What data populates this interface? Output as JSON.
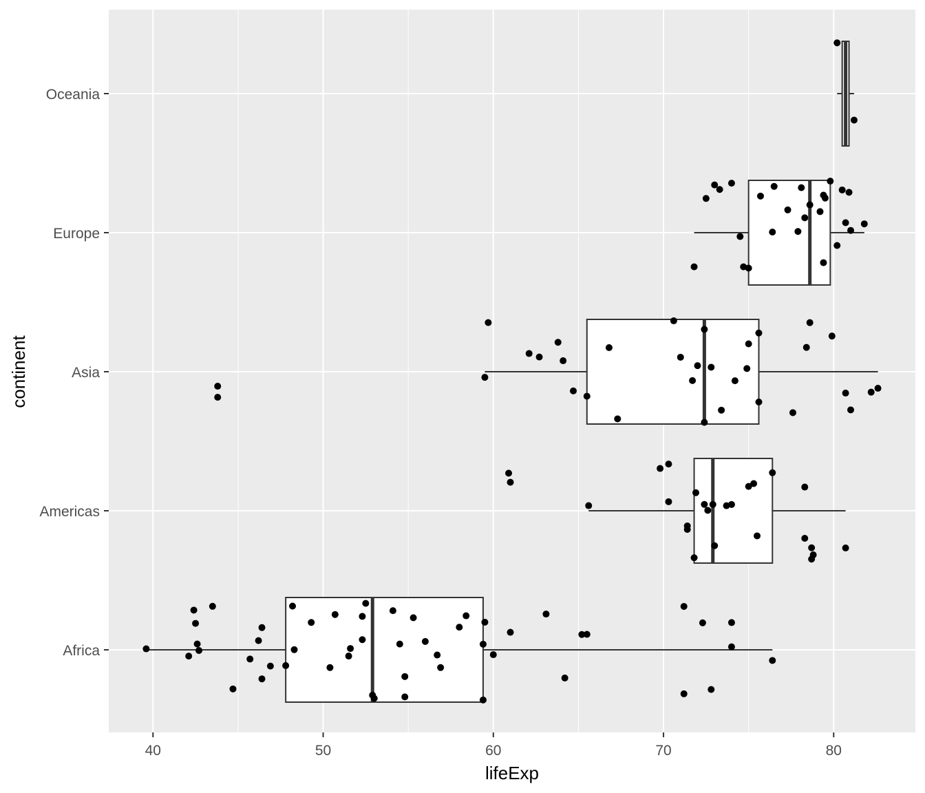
{
  "chart_data": {
    "type": "boxplot",
    "orientation": "horizontal",
    "xlabel": "lifeExp",
    "ylabel": "continent",
    "xlim": [
      37.4,
      84.8
    ],
    "x_ticks": [
      40,
      50,
      60,
      70,
      80
    ],
    "categories": [
      "Africa",
      "Americas",
      "Asia",
      "Europe",
      "Oceania"
    ],
    "grid": true,
    "background": "#ebebeb",
    "colors": {
      "panel": "#ebebeb",
      "grid": "#ffffff",
      "box_fill": "#ffffff",
      "box_line": "#333333",
      "point": "#000000"
    },
    "boxes": [
      {
        "category": "Africa",
        "whisker_low": 39.6,
        "q1": 47.8,
        "median": 52.9,
        "q3": 59.4,
        "whisker_high": 76.4
      },
      {
        "category": "Americas",
        "whisker_low": 65.6,
        "q1": 71.8,
        "median": 72.9,
        "q3": 76.4,
        "whisker_high": 80.7
      },
      {
        "category": "Asia",
        "whisker_low": 59.5,
        "q1": 65.5,
        "median": 72.4,
        "q3": 75.6,
        "whisker_high": 82.6
      },
      {
        "category": "Europe",
        "whisker_low": 71.8,
        "q1": 75.0,
        "median": 78.6,
        "q3": 79.8,
        "whisker_high": 81.8
      },
      {
        "category": "Oceania",
        "whisker_low": 80.2,
        "q1": 80.5,
        "median": 80.7,
        "q3": 80.9,
        "whisker_high": 81.2
      }
    ],
    "points": [
      {
        "category": "Africa",
        "values": [
          39.6,
          42.1,
          42.4,
          42.5,
          42.6,
          42.7,
          43.5,
          44.7,
          45.7,
          46.2,
          46.4,
          46.4,
          46.9,
          48.2,
          48.3,
          49.3,
          50.4,
          50.7,
          51.5,
          51.6,
          52.3,
          52.5,
          52.9,
          53.0,
          54.1,
          54.5,
          54.8,
          55.3,
          56.0,
          56.7,
          56.9,
          58.0,
          58.4,
          59.4,
          59.4,
          59.5,
          60.0,
          61.0,
          63.1,
          64.2,
          65.2,
          65.5,
          71.2,
          71.2,
          72.3,
          72.8,
          74.0,
          74.0,
          76.4,
          52.3,
          54.8,
          47.8
        ]
      },
      {
        "category": "Americas",
        "values": [
          60.9,
          61.0,
          65.6,
          69.8,
          70.3,
          70.3,
          71.4,
          71.4,
          71.8,
          71.9,
          72.4,
          72.6,
          72.9,
          73.0,
          73.7,
          74.0,
          75.0,
          75.3,
          75.5,
          76.4,
          78.3,
          78.3,
          78.7,
          78.7,
          78.8,
          80.7
        ]
      },
      {
        "category": "Asia",
        "values": [
          43.8,
          43.8,
          59.5,
          59.7,
          62.1,
          62.7,
          63.8,
          64.1,
          64.7,
          65.5,
          66.8,
          67.3,
          70.6,
          71.0,
          71.7,
          72.0,
          72.4,
          72.4,
          72.8,
          73.4,
          74.2,
          74.9,
          75.6,
          75.6,
          77.6,
          78.4,
          78.6,
          79.9,
          80.7,
          82.2,
          82.6,
          81.0,
          75.0
        ]
      },
      {
        "category": "Europe",
        "values": [
          71.8,
          72.5,
          73.0,
          73.3,
          74.0,
          74.5,
          74.7,
          75.0,
          75.7,
          76.4,
          76.5,
          77.3,
          77.9,
          78.1,
          78.3,
          78.6,
          79.2,
          79.4,
          79.4,
          79.5,
          79.8,
          80.2,
          80.5,
          80.7,
          80.9,
          81.0,
          81.8
        ]
      },
      {
        "category": "Oceania",
        "values": [
          80.2,
          81.2
        ]
      }
    ]
  }
}
